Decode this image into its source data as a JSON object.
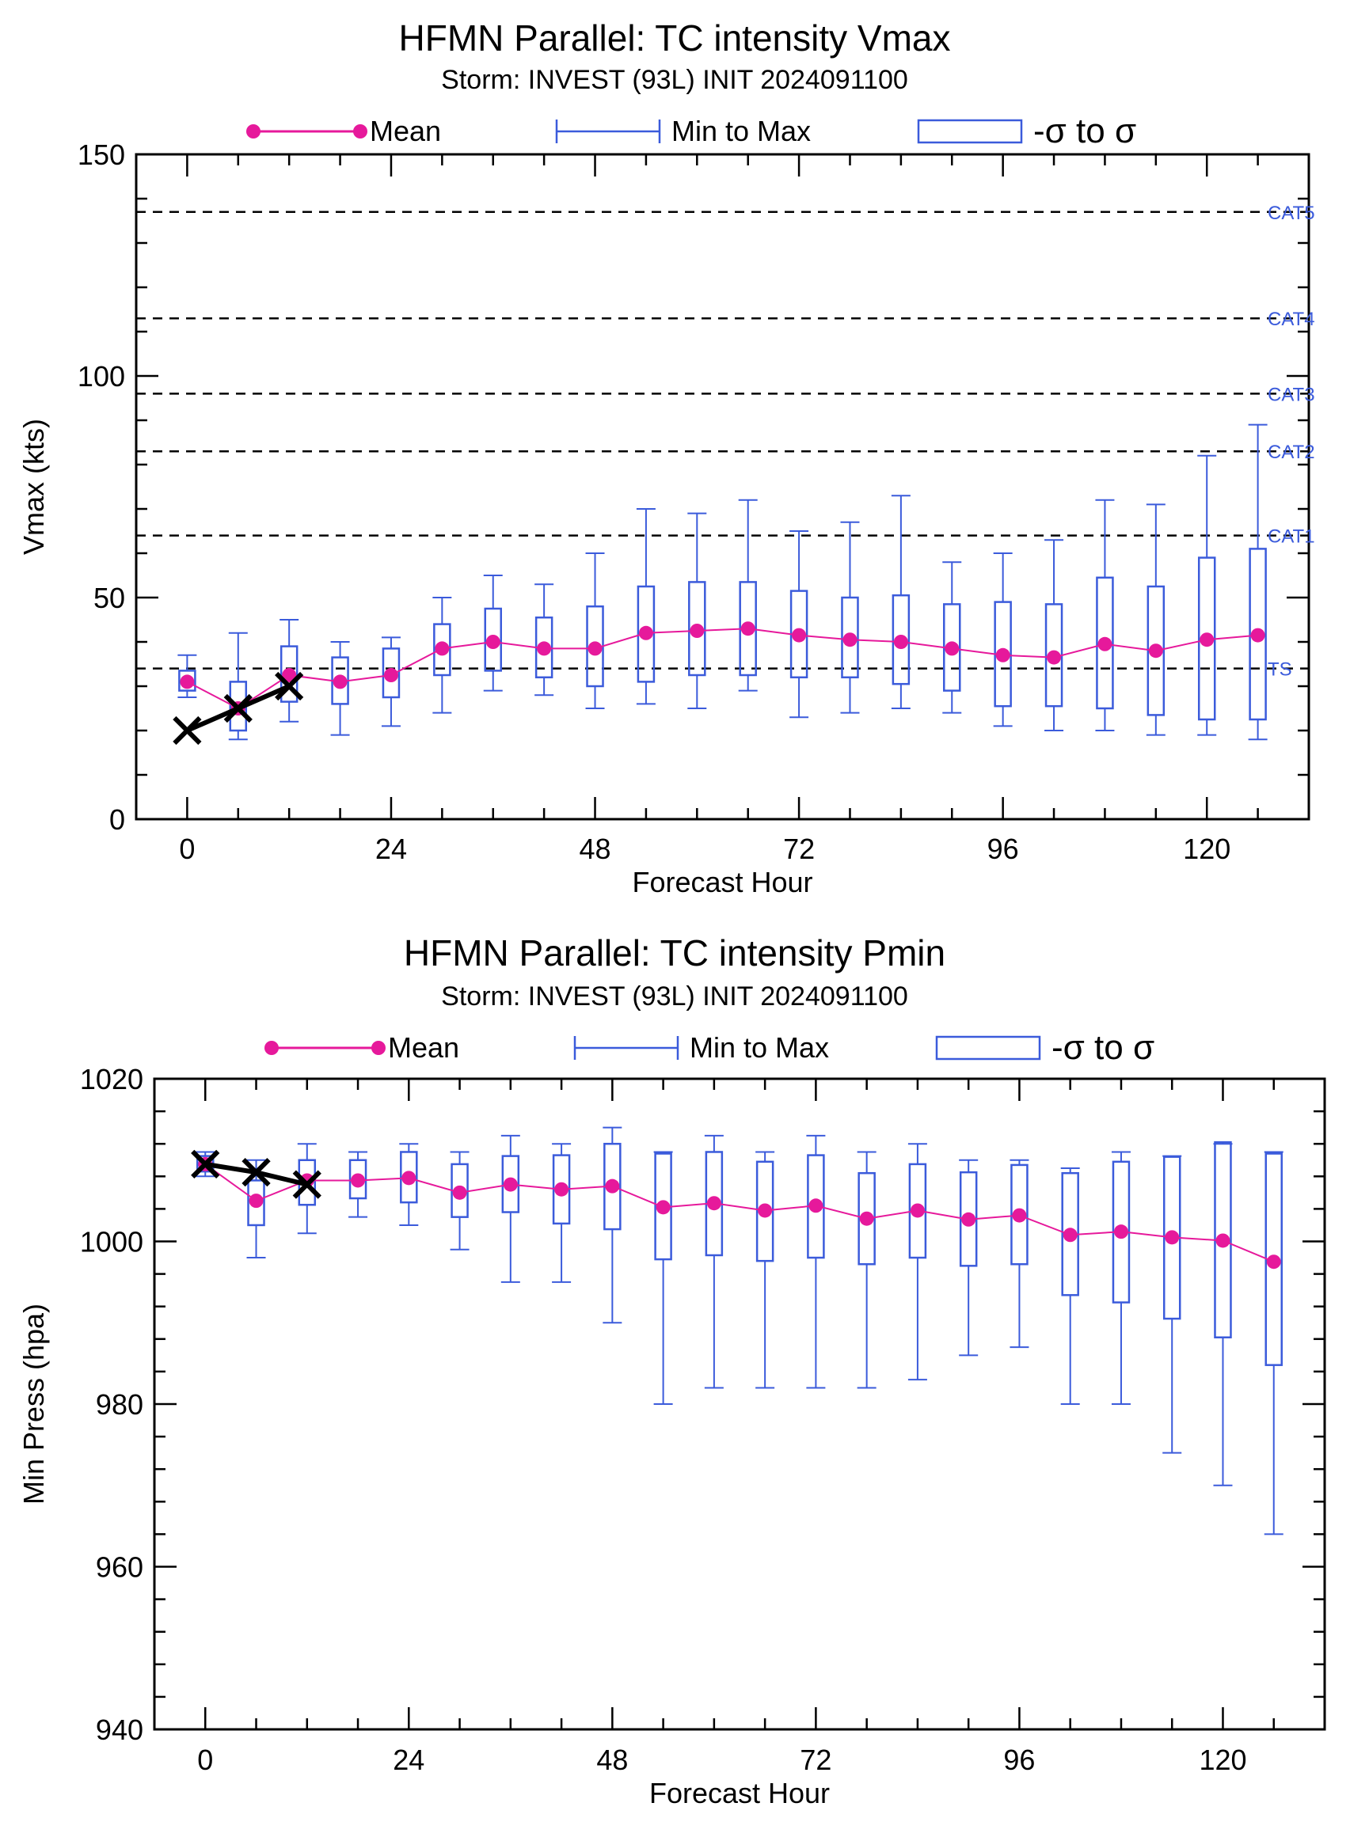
{
  "chart_data": [
    {
      "type": "box",
      "title": "HFMN Parallel: TC intensity Vmax",
      "subtitle": "Storm: INVEST (93L) INIT 2024091100",
      "xlabel": "Forecast Hour",
      "ylabel": "Vmax (kts)",
      "xlim": [
        -6,
        132
      ],
      "ylim": [
        0,
        150
      ],
      "xticks": [
        0,
        24,
        48,
        72,
        96,
        120
      ],
      "yticks": [
        0,
        50,
        100,
        150
      ],
      "legend": {
        "placement": "top",
        "entries": [
          {
            "label": "Mean",
            "color": "#e6199b"
          },
          {
            "label": "Min to Max",
            "color": "#3b5bdb"
          },
          {
            "label": "-σ to σ",
            "color": "#3b5bdb"
          }
        ]
      },
      "category_lines": [
        {
          "label": "CAT5",
          "value": 137
        },
        {
          "label": "CAT4",
          "value": 113
        },
        {
          "label": "CAT3",
          "value": 96
        },
        {
          "label": "CAT2",
          "value": 83
        },
        {
          "label": "CAT1",
          "value": 64
        },
        {
          "label": "TS",
          "value": 34
        }
      ],
      "colors": {
        "mean": "#e6199b",
        "spread": "#3b5bdb",
        "observed": "#000000",
        "category_label": "#3b5bdb"
      },
      "forecast_hours": [
        0,
        6,
        12,
        18,
        24,
        30,
        36,
        42,
        48,
        54,
        60,
        66,
        72,
        78,
        84,
        90,
        96,
        102,
        108,
        114,
        120,
        126
      ],
      "mean": [
        31,
        25,
        32.5,
        31,
        32.5,
        38.5,
        40,
        38.5,
        38.5,
        42,
        42.5,
        43,
        41.5,
        40.5,
        40,
        38.5,
        37,
        36.5,
        39.5,
        38,
        40.5,
        41.5
      ],
      "min": [
        27.5,
        18,
        22,
        19,
        21,
        24,
        29,
        28,
        25,
        26,
        25,
        29,
        23,
        24,
        25,
        24,
        21,
        20,
        20,
        19,
        19,
        18
      ],
      "max": [
        37,
        42,
        45,
        40,
        41,
        50,
        55,
        53,
        60,
        70,
        69,
        72,
        65,
        67,
        73,
        58,
        60,
        63,
        72,
        71,
        82,
        89
      ],
      "sigma_low": [
        29,
        20,
        26.5,
        26,
        27.5,
        32.5,
        33.5,
        32,
        30,
        31,
        32.5,
        32.5,
        32,
        32,
        30.5,
        29,
        25.5,
        25.5,
        25,
        23.5,
        22.5,
        22.5
      ],
      "sigma_high": [
        33.5,
        31,
        39,
        36.5,
        38.5,
        44,
        47.5,
        45.5,
        48,
        52.5,
        53.5,
        53.5,
        51.5,
        50,
        50.5,
        48.5,
        49,
        48.5,
        54.5,
        52.5,
        59,
        61
      ],
      "observed_hours": [
        0,
        6,
        12
      ],
      "observed": [
        20,
        25,
        30
      ]
    },
    {
      "type": "box",
      "title": "HFMN Parallel: TC intensity Pmin",
      "subtitle": "Storm: INVEST (93L) INIT 2024091100",
      "xlabel": "Forecast Hour",
      "ylabel": "Min Press (hpa)",
      "xlim": [
        -6,
        132
      ],
      "ylim": [
        940,
        1020
      ],
      "xticks": [
        0,
        24,
        48,
        72,
        96,
        120
      ],
      "yticks": [
        940,
        960,
        980,
        1000,
        1020
      ],
      "legend": {
        "placement": "top",
        "entries": [
          {
            "label": "Mean",
            "color": "#e6199b"
          },
          {
            "label": "Min to Max",
            "color": "#3b5bdb"
          },
          {
            "label": "-σ to σ",
            "color": "#3b5bdb"
          }
        ]
      },
      "colors": {
        "mean": "#e6199b",
        "spread": "#3b5bdb",
        "observed": "#000000"
      },
      "forecast_hours": [
        0,
        6,
        12,
        18,
        24,
        30,
        36,
        42,
        48,
        54,
        60,
        66,
        72,
        78,
        84,
        90,
        96,
        102,
        108,
        114,
        120,
        126
      ],
      "mean": [
        1009.5,
        1005,
        1007.5,
        1007.5,
        1007.8,
        1006,
        1007,
        1006.4,
        1006.8,
        1004.2,
        1004.7,
        1003.8,
        1004.4,
        1002.8,
        1003.8,
        1002.7,
        1003.2,
        1000.8,
        1001.2,
        1000.5,
        1000.1,
        997.5
      ],
      "min": [
        1008,
        998,
        1001,
        1003,
        1002,
        999,
        995,
        995,
        990,
        980,
        982,
        982,
        982,
        982,
        983,
        986,
        987,
        980,
        980,
        974,
        970,
        964
      ],
      "max": [
        1011,
        1010,
        1012,
        1011,
        1012,
        1011,
        1013,
        1012,
        1014,
        1011,
        1013,
        1011,
        1013,
        1011,
        1012,
        1010,
        1010,
        1009,
        1011,
        1010.5,
        1012,
        1011
      ],
      "sigma_low": [
        1008.6,
        1002,
        1004.5,
        1005.3,
        1004.8,
        1003,
        1003.6,
        1002.2,
        1001.5,
        997.8,
        998.3,
        997.6,
        998,
        997.2,
        998,
        997,
        997.2,
        993.4,
        992.5,
        990.5,
        988.2,
        984.8
      ],
      "sigma_high": [
        1010.5,
        1007.5,
        1010,
        1010,
        1011,
        1009.5,
        1010.5,
        1010.6,
        1012,
        1010.8,
        1011,
        1009.8,
        1010.6,
        1008.4,
        1009.5,
        1008.5,
        1009.4,
        1008.4,
        1009.8,
        1010.4,
        1012.2,
        1010.8
      ],
      "observed_hours": [
        0,
        6,
        12
      ],
      "observed": [
        1009.5,
        1008.5,
        1007
      ]
    }
  ]
}
